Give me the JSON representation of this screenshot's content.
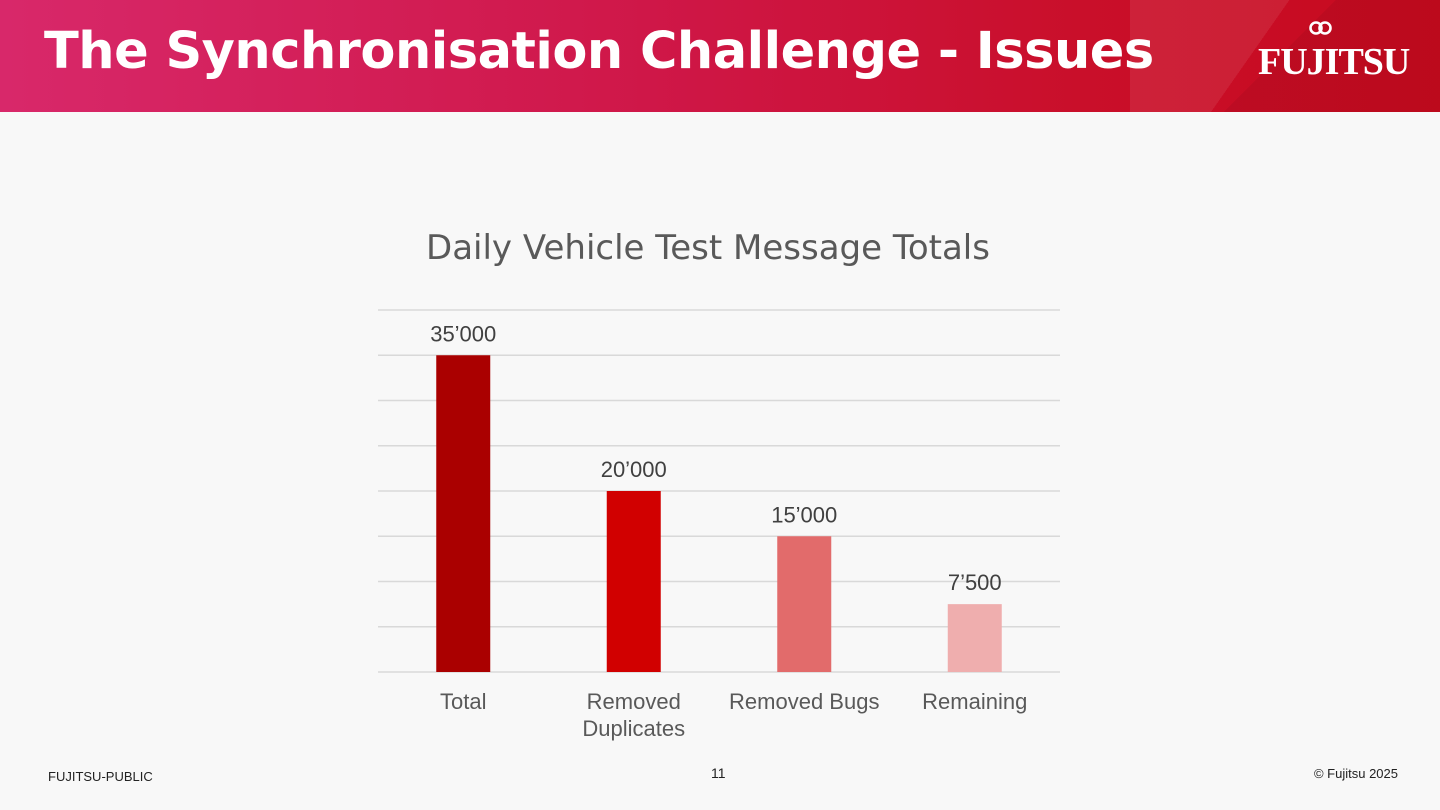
{
  "slide": {
    "title": "The Synchronisation Challenge - Issues",
    "logo_text": "FUJITSU",
    "classification": "FUJITSU-PUBLIC",
    "page_number": "11",
    "copyright": "© Fujitsu 2025"
  },
  "chart_data": {
    "type": "bar",
    "title": "Daily Vehicle Test Message Totals",
    "categories": [
      [
        "Total"
      ],
      [
        "Removed",
        "Duplicates"
      ],
      [
        "Removed Bugs"
      ],
      [
        "Remaining"
      ]
    ],
    "values": [
      35000,
      20000,
      15000,
      7500
    ],
    "data_labels": [
      "35’000",
      "20’000",
      "15’000",
      "7’500"
    ],
    "bar_colors": [
      "#aa0000",
      "#d10000",
      "#e26b6b",
      "#efaeae"
    ],
    "ylim": [
      0,
      40000
    ],
    "y_gridline_step": 5000,
    "grid": true,
    "y_tick_labels_shown": false,
    "legend": "none"
  }
}
